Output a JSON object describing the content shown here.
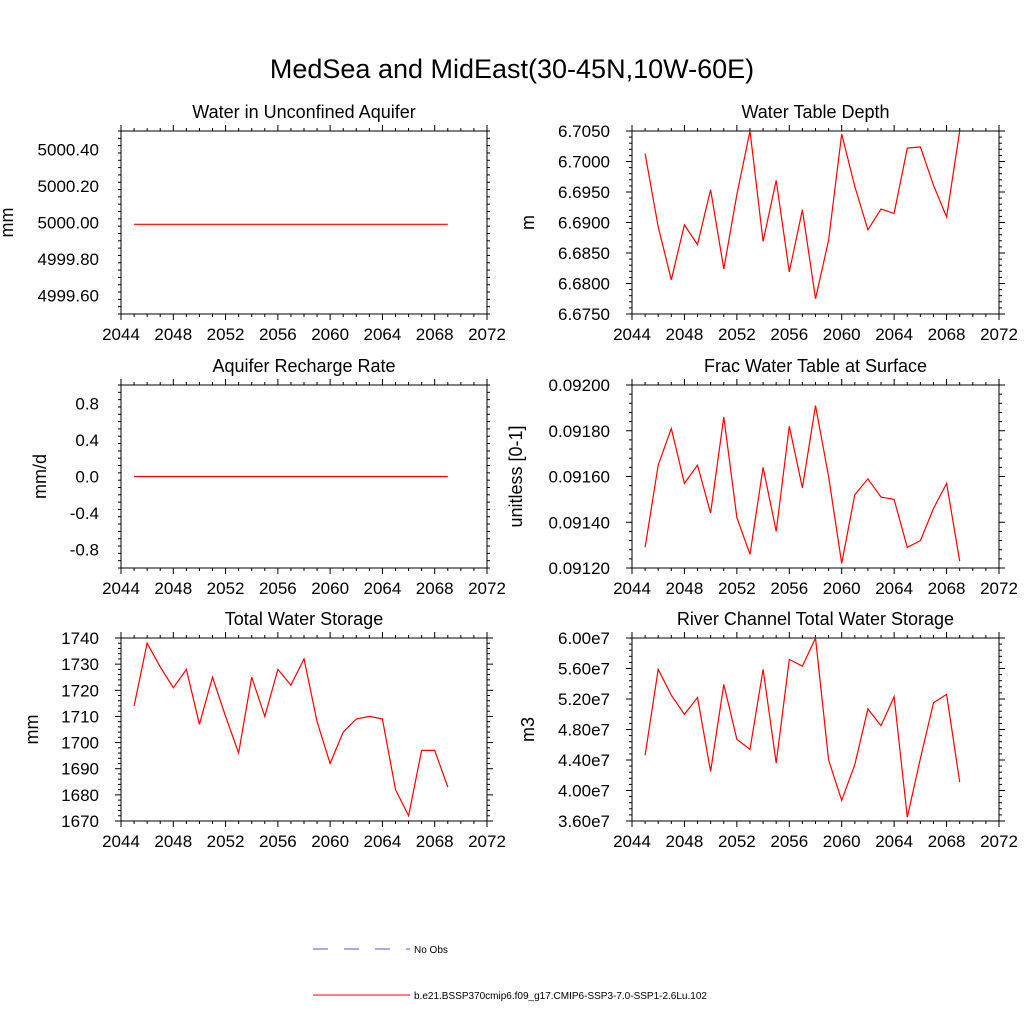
{
  "figure": {
    "title": "MedSea and MidEast(30-45N,10W-60E)",
    "legend": [
      {
        "label": "No Obs",
        "color": "#5555cc",
        "dash": true
      },
      {
        "label": "b.e21.BSSP370cmip6.f09_g17.CMIP6-SSP3-7.0-SSP1-2.6Lu.102",
        "color": "#ff0000",
        "dash": false
      }
    ]
  },
  "chart_data": [
    {
      "type": "line",
      "title": "Water in Unconfined Aquifer",
      "ylabel": "mm",
      "xlim": [
        2044,
        2072
      ],
      "ylim": [
        4999.5,
        5000.5
      ],
      "xticks": [
        2044,
        2048,
        2052,
        2056,
        2060,
        2064,
        2068,
        2072
      ],
      "xtick_labels": [
        "2044",
        "2048",
        "2052",
        "2056",
        "2060",
        "2064",
        "2068",
        "2072"
      ],
      "yticks": [
        4999.6,
        4999.8,
        5000.0,
        5000.2,
        5000.4
      ],
      "ytick_labels": [
        "4999.60",
        "4999.80",
        "5000.00",
        "5000.20",
        "5000.40"
      ],
      "x": [
        2045,
        2046,
        2047,
        2048,
        2049,
        2050,
        2051,
        2052,
        2053,
        2054,
        2055,
        2056,
        2057,
        2058,
        2059,
        2060,
        2061,
        2062,
        2063,
        2064,
        2065,
        2066,
        2067,
        2068,
        2069
      ],
      "series": [
        {
          "color": "#ff0000",
          "values": [
            4999.99,
            4999.99,
            4999.99,
            4999.99,
            4999.99,
            4999.99,
            4999.99,
            4999.99,
            4999.99,
            4999.99,
            4999.99,
            4999.99,
            4999.99,
            4999.99,
            4999.99,
            4999.99,
            4999.99,
            4999.99,
            4999.99,
            4999.99,
            4999.99,
            4999.99,
            4999.99,
            4999.99,
            4999.99
          ]
        }
      ]
    },
    {
      "type": "line",
      "title": "Water Table Depth",
      "ylabel": "m",
      "xlim": [
        2044,
        2072
      ],
      "ylim": [
        6.675,
        6.705
      ],
      "xticks": [
        2044,
        2048,
        2052,
        2056,
        2060,
        2064,
        2068,
        2072
      ],
      "xtick_labels": [
        "2044",
        "2048",
        "2052",
        "2056",
        "2060",
        "2064",
        "2068",
        "2072"
      ],
      "yticks": [
        6.675,
        6.68,
        6.685,
        6.69,
        6.695,
        6.7,
        6.705
      ],
      "ytick_labels": [
        "6.6750",
        "6.6800",
        "6.6850",
        "6.6900",
        "6.6950",
        "6.7000",
        "6.7050"
      ],
      "x": [
        2045,
        2046,
        2047,
        2048,
        2049,
        2050,
        2051,
        2052,
        2053,
        2054,
        2055,
        2056,
        2057,
        2058,
        2059,
        2060,
        2061,
        2062,
        2063,
        2064,
        2065,
        2066,
        2067,
        2068,
        2069
      ],
      "series": [
        {
          "color": "#ff0000",
          "values": [
            6.7013,
            6.6893,
            6.6806,
            6.6896,
            6.6864,
            6.6954,
            6.6824,
            6.6946,
            6.705,
            6.6869,
            6.6969,
            6.6819,
            6.6921,
            6.6775,
            6.6871,
            6.7045,
            6.6959,
            6.6888,
            6.6922,
            6.6915,
            6.7022,
            6.7024,
            6.6961,
            6.6909,
            6.705
          ]
        }
      ]
    },
    {
      "type": "line",
      "title": "Aquifer Recharge Rate",
      "ylabel": "mm/d",
      "xlim": [
        2044,
        2072
      ],
      "ylim": [
        -1.0,
        1.0
      ],
      "xticks": [
        2044,
        2048,
        2052,
        2056,
        2060,
        2064,
        2068,
        2072
      ],
      "xtick_labels": [
        "2044",
        "2048",
        "2052",
        "2056",
        "2060",
        "2064",
        "2068",
        "2072"
      ],
      "yticks": [
        -0.8,
        -0.4,
        0.0,
        0.4,
        0.8
      ],
      "ytick_labels": [
        "-0.8",
        "-0.4",
        "0.0",
        "0.4",
        "0.8"
      ],
      "x": [
        2045,
        2046,
        2047,
        2048,
        2049,
        2050,
        2051,
        2052,
        2053,
        2054,
        2055,
        2056,
        2057,
        2058,
        2059,
        2060,
        2061,
        2062,
        2063,
        2064,
        2065,
        2066,
        2067,
        2068,
        2069
      ],
      "series": [
        {
          "color": "#ff0000",
          "values": [
            0,
            0,
            0,
            0,
            0,
            0,
            0,
            0,
            0,
            0,
            0,
            0,
            0,
            0,
            0,
            0,
            0,
            0,
            0,
            0,
            0,
            0,
            0,
            0,
            0
          ]
        }
      ]
    },
    {
      "type": "line",
      "title": "Frac Water Table at Surface",
      "ylabel": "unitless [0-1]",
      "xlim": [
        2044,
        2072
      ],
      "ylim": [
        0.0912,
        0.092
      ],
      "xticks": [
        2044,
        2048,
        2052,
        2056,
        2060,
        2064,
        2068,
        2072
      ],
      "xtick_labels": [
        "2044",
        "2048",
        "2052",
        "2056",
        "2060",
        "2064",
        "2068",
        "2072"
      ],
      "yticks": [
        0.0912,
        0.0914,
        0.0916,
        0.0918,
        0.092
      ],
      "ytick_labels": [
        "0.09120",
        "0.09140",
        "0.09160",
        "0.09180",
        "0.09200"
      ],
      "x": [
        2045,
        2046,
        2047,
        2048,
        2049,
        2050,
        2051,
        2052,
        2053,
        2054,
        2055,
        2056,
        2057,
        2058,
        2059,
        2060,
        2061,
        2062,
        2063,
        2064,
        2065,
        2066,
        2067,
        2068,
        2069
      ],
      "series": [
        {
          "color": "#ff0000",
          "values": [
            0.09129,
            0.09165,
            0.09181,
            0.09157,
            0.09165,
            0.09144,
            0.09186,
            0.09142,
            0.09126,
            0.09164,
            0.09136,
            0.09182,
            0.09155,
            0.09191,
            0.0916,
            0.09122,
            0.09152,
            0.09159,
            0.09151,
            0.0915,
            0.09129,
            0.09132,
            0.09146,
            0.09157,
            0.09123
          ]
        }
      ]
    },
    {
      "type": "line",
      "title": "Total Water Storage",
      "ylabel": "mm",
      "xlim": [
        2044,
        2072
      ],
      "ylim": [
        1670,
        1740
      ],
      "xticks": [
        2044,
        2048,
        2052,
        2056,
        2060,
        2064,
        2068,
        2072
      ],
      "xtick_labels": [
        "2044",
        "2048",
        "2052",
        "2056",
        "2060",
        "2064",
        "2068",
        "2072"
      ],
      "yticks": [
        1670,
        1680,
        1690,
        1700,
        1710,
        1720,
        1730,
        1740
      ],
      "ytick_labels": [
        "1670",
        "1680",
        "1690",
        "1700",
        "1710",
        "1720",
        "1730",
        "1740"
      ],
      "x": [
        2045,
        2046,
        2047,
        2048,
        2049,
        2050,
        2051,
        2052,
        2053,
        2054,
        2055,
        2056,
        2057,
        2058,
        2059,
        2060,
        2061,
        2062,
        2063,
        2064,
        2065,
        2066,
        2067,
        2068,
        2069
      ],
      "series": [
        {
          "color": "#ff0000",
          "values": [
            1714,
            1738,
            1729,
            1721,
            1728,
            1707,
            1725,
            1710,
            1696,
            1725,
            1710,
            1728,
            1722,
            1732,
            1708,
            1692,
            1704,
            1709,
            1710,
            1709,
            1682,
            1672,
            1697,
            1697,
            1683
          ]
        }
      ]
    },
    {
      "type": "line",
      "title": "River Channel Total Water Storage",
      "ylabel": "m3",
      "xlim": [
        2044,
        2072
      ],
      "ylim": [
        36000000,
        60000000
      ],
      "xticks": [
        2044,
        2048,
        2052,
        2056,
        2060,
        2064,
        2068,
        2072
      ],
      "xtick_labels": [
        "2044",
        "2048",
        "2052",
        "2056",
        "2060",
        "2064",
        "2068",
        "2072"
      ],
      "yticks": [
        36000000,
        40000000,
        44000000,
        48000000,
        52000000,
        56000000,
        60000000
      ],
      "ytick_labels": [
        "3.60e7",
        "4.00e7",
        "4.40e7",
        "4.80e7",
        "5.20e7",
        "5.60e7",
        "6.00e7"
      ],
      "x": [
        2045,
        2046,
        2047,
        2048,
        2049,
        2050,
        2051,
        2052,
        2053,
        2054,
        2055,
        2056,
        2057,
        2058,
        2059,
        2060,
        2061,
        2062,
        2063,
        2064,
        2065,
        2066,
        2067,
        2068,
        2069
      ],
      "series": [
        {
          "color": "#ff0000",
          "values": [
            44600000,
            55900000,
            52500000,
            50000000,
            52200000,
            42500000,
            53900000,
            46700000,
            45400000,
            55900000,
            43600000,
            57200000,
            56300000,
            60000000,
            44000000,
            38700000,
            43400000,
            50700000,
            48500000,
            52300000,
            36500000,
            44200000,
            51500000,
            52600000,
            41100000
          ]
        }
      ]
    }
  ]
}
